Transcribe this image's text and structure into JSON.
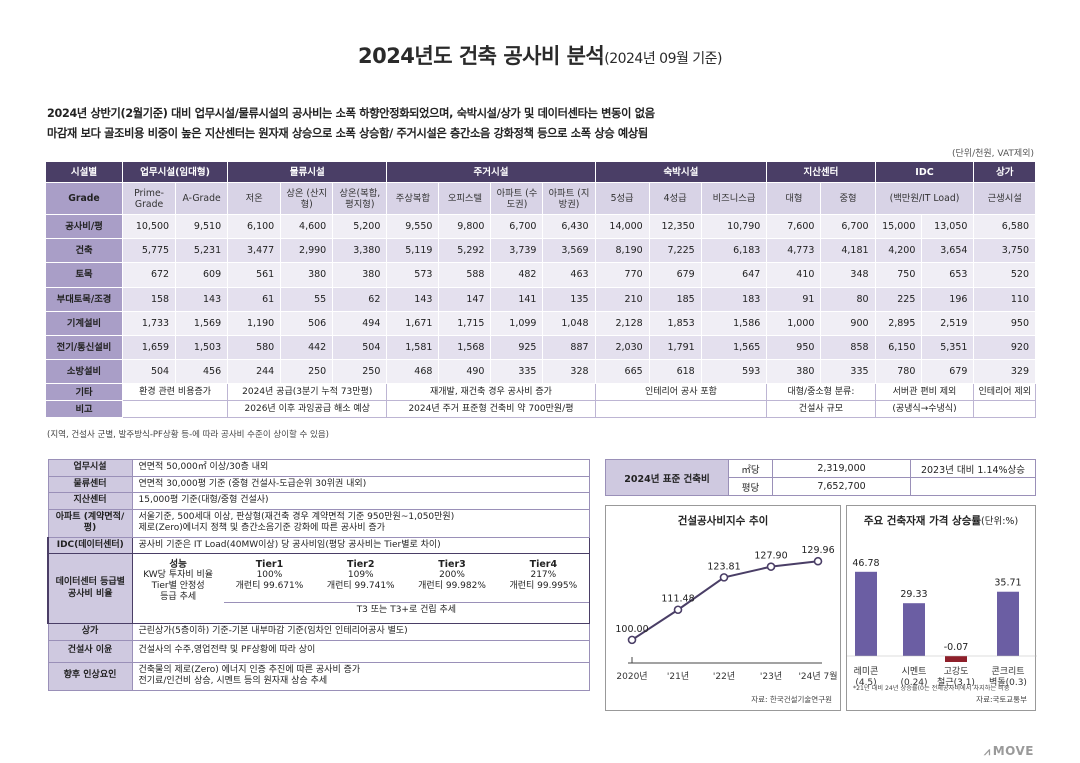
{
  "title": {
    "main": "2024년도 건축 공사비 분석",
    "sub": "(2024년 09월 기준)"
  },
  "summary": {
    "line1": "2024년 상반기(2월기준) 대비 업무시설/물류시설의 공사비는 소폭 하향안정화되었으며, 숙박시설/상가 및 데이터센타는 변동이 없음",
    "line2": "마감재 보다 골조비용 비중이 높은 지산센터는 원자재 상승으로 소폭 상승함/ 주거시설은 층간소음 강화정책 등으로 소폭 상승 예상됨"
  },
  "unit_note": "(단위/천원, VAT제외)",
  "main_table": {
    "corner": "시설별",
    "groups": [
      "업무시설(임대형)",
      "물류시설",
      "주거시설",
      "숙박시설",
      "지산센터",
      "IDC",
      "상가"
    ],
    "grade_label": "Grade",
    "grades": [
      "Prime-Grade",
      "A-Grade",
      "저온",
      "상온 (산지형)",
      "상온(복합, 평지형)",
      "주상복합",
      "오피스텔",
      "아파트 (수도권)",
      "아파트 (지방권)",
      "5성급",
      "4성급",
      "비즈니스급",
      "대형",
      "중형",
      "(백만원/IT Load)",
      "근생시설"
    ],
    "rows": [
      {
        "label": "공사비/평",
        "values": [
          "10,500",
          "9,510",
          "6,100",
          "4,600",
          "5,200",
          "9,550",
          "9,800",
          "6,700",
          "6,430",
          "14,000",
          "12,350",
          "10,790",
          "7,600",
          "6,700",
          "15,000",
          "13,050",
          "6,580"
        ]
      },
      {
        "label": "건축",
        "values": [
          "5,775",
          "5,231",
          "3,477",
          "2,990",
          "3,380",
          "5,119",
          "5,292",
          "3,739",
          "3,569",
          "8,190",
          "7,225",
          "6,183",
          "4,773",
          "4,181",
          "4,200",
          "3,654",
          "3,750"
        ]
      },
      {
        "label": "토목",
        "values": [
          "672",
          "609",
          "561",
          "380",
          "380",
          "573",
          "588",
          "482",
          "463",
          "770",
          "679",
          "647",
          "410",
          "348",
          "750",
          "653",
          "520"
        ]
      },
      {
        "label": "부대토목/조경",
        "values": [
          "158",
          "143",
          "61",
          "55",
          "62",
          "143",
          "147",
          "141",
          "135",
          "210",
          "185",
          "183",
          "91",
          "80",
          "225",
          "196",
          "110"
        ]
      },
      {
        "label": "기계설비",
        "values": [
          "1,733",
          "1,569",
          "1,190",
          "506",
          "494",
          "1,671",
          "1,715",
          "1,099",
          "1,048",
          "2,128",
          "1,853",
          "1,586",
          "1,000",
          "900",
          "2,895",
          "2,519",
          "950"
        ]
      },
      {
        "label": "전기/통신설비",
        "values": [
          "1,659",
          "1,503",
          "580",
          "442",
          "504",
          "1,581",
          "1,568",
          "925",
          "887",
          "2,030",
          "1,791",
          "1,565",
          "950",
          "858",
          "6,150",
          "5,351",
          "920"
        ]
      },
      {
        "label": "소방설비",
        "values": [
          "504",
          "456",
          "244",
          "250",
          "250",
          "468",
          "490",
          "335",
          "328",
          "665",
          "618",
          "593",
          "380",
          "335",
          "780",
          "679",
          "329"
        ]
      }
    ],
    "etc": {
      "label": "기타",
      "office": "환경 관련 비용증가",
      "logistics": "2024년 공급(3분기 누적 73만평)",
      "housing": "재개발, 재건축 경우 공사비 증가",
      "hotel": "인테리어 공사 포함",
      "jisan": "대형/중소형 분류:",
      "idc": "서버관 편비 제외",
      "retail": "인테리어 제외"
    },
    "remark": {
      "label": "비고",
      "logistics": "2026년 이후 과잉공급 해소 예상",
      "housing": "2024년 주거 표준형 건축비 약 700만원/평",
      "jisan": "건설사 규모",
      "idc": "(공냉식→수냉식)"
    }
  },
  "footnote": "(지역, 건설사 군별, 발주방식-PF상황 등-에 따라 공사비 수준이 상이할 수 있음)",
  "criteria": {
    "office": {
      "label": "업무시설",
      "text": "연면적 50,000㎡ 이상/30층 내외"
    },
    "logistics": {
      "label": "물류센터",
      "text": "연면적 30,000평 기준 (중형 건설사-도급순위 30위권 내외)"
    },
    "jisan": {
      "label": "지산센터",
      "text": "15,000평 기준(대형/중형 건설사)"
    },
    "apt": {
      "label": "아파트 (계약면적/평)",
      "line1": "서울기준, 500세대 이상, 판상형(재건축 경우 계약면적 기준 950만원~1,050만원)",
      "line2": "제로(Zero)에너지 정책 및 층간소음기준 강화에 따른 공사비 증가"
    },
    "idc": {
      "label": "IDC(데이터센터)",
      "text": "공사비 기준은 IT Load(40MW이상) 당 공사비임(평당 공사비는 Tier별로 차이)"
    },
    "dc_grade": {
      "label": "데이터센터 등급별 공사비 비율",
      "headers": [
        "성능",
        "Tier1",
        "Tier2",
        "Tier3",
        "Tier4"
      ],
      "row1": [
        "KW당 투자비 비율",
        "100%",
        "109%",
        "200%",
        "217%"
      ],
      "row2": [
        "Tier별 안정성",
        "개런티 99.671%",
        "개런티 99.741%",
        "개런티 99.982%",
        "개런티 99.995%"
      ],
      "row3": "등급 추세",
      "trend": "T3 또는 T3+로 건립 추세"
    },
    "retail": {
      "label": "상가",
      "text": "근린상가(5층이하) 기준-기본 내부마감 기준(임차인 인테리어공사 별도)"
    },
    "margin": {
      "label": "건설사 이윤",
      "text": "건설사의 수주,영업전략 및 PF상황에 따라 상이"
    },
    "factors": {
      "label": "향후 인상요인",
      "line1": "건축물의 제로(Zero) 에너지 인증 추진에 따른 공사비 증가",
      "line2": "전기료/인건비 상승, 시멘트 등의 원자재 상승 추세"
    }
  },
  "standard_cost": {
    "label": "2024년 표준 건축비",
    "unit1": "㎡당",
    "value1": "2,319,000",
    "change": "2023년 대비 1.14%상승",
    "unit2": "평당",
    "value2": "7,652,700"
  },
  "chart_data": [
    {
      "type": "line",
      "title": "건설공사비지수 추이",
      "x": [
        "2020년",
        "'21년",
        "'22년",
        "'23년",
        "'24년 7월"
      ],
      "values": [
        100.0,
        111.48,
        123.81,
        127.9,
        129.96
      ],
      "labels": [
        "100.00",
        "111.48",
        "123.81",
        "127.90",
        "129.96"
      ],
      "source": "자료: 한국건설기술연구원",
      "color": "#4a3e66"
    },
    {
      "type": "bar",
      "title": "주요 건축자재 가격 상승률",
      "title_unit": "(단위:%)",
      "categories": [
        [
          "레미콘",
          "(4.5)"
        ],
        [
          "시멘트",
          "(0.24)"
        ],
        [
          "고강도",
          "철근(3.1)"
        ],
        [
          "콘크리트",
          "벽돌(0.3)"
        ]
      ],
      "values": [
        46.78,
        29.33,
        -0.07,
        35.71
      ],
      "labels": [
        "46.78",
        "29.33",
        "-0.07",
        "35.71"
      ],
      "note": "*21년 대비 24년 상승률(0는 전체공사비에서 차지하는 비중",
      "source": "자료:국토교통부",
      "colors": {
        "positive": "#6b5ea3",
        "negative": "#8e1f2a"
      }
    }
  ],
  "logo": {
    "text": "MOVE",
    "icon": "move-logo-icon"
  }
}
